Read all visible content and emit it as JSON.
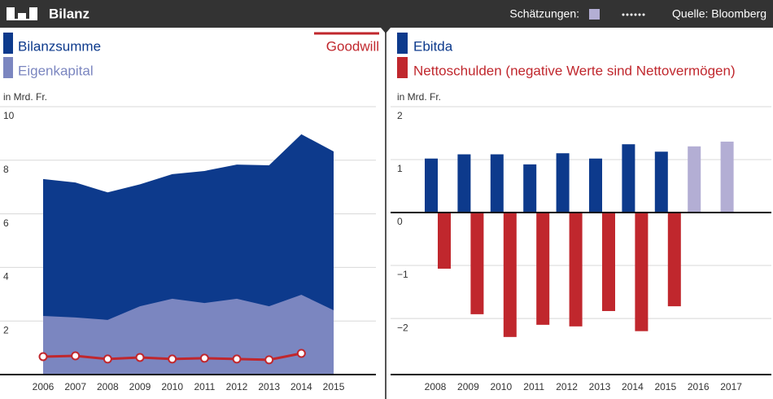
{
  "header": {
    "title": "Bilanz",
    "estimate_label": "Schätzungen:",
    "source": "Quelle: Bloomberg"
  },
  "chart_data": [
    {
      "type": "area",
      "y_label": "in Mrd. Fr.",
      "categories": [
        "2006",
        "2007",
        "2008",
        "2009",
        "2010",
        "2011",
        "2012",
        "2013",
        "2014",
        "2015"
      ],
      "series": [
        {
          "name": "Bilanzsumme",
          "color": "#0d3a8c",
          "values": [
            7.3,
            7.17,
            6.8,
            7.1,
            7.48,
            7.6,
            7.84,
            7.81,
            8.97,
            8.33
          ]
        },
        {
          "name": "Eigenkapital",
          "color": "#7b86c0",
          "values": [
            2.19,
            2.13,
            2.04,
            2.55,
            2.83,
            2.67,
            2.83,
            2.55,
            2.98,
            2.4
          ]
        },
        {
          "name": "Goodwill",
          "color": "#c0272d",
          "type": "line",
          "values": [
            0.67,
            0.7,
            0.58,
            0.64,
            0.58,
            0.61,
            0.58,
            0.55,
            0.79,
            null
          ]
        }
      ],
      "ylim": [
        0,
        10
      ],
      "yticks": [
        2,
        4,
        6,
        8,
        10
      ],
      "grid": true
    },
    {
      "type": "bar",
      "y_label": "in Mrd. Fr.",
      "categories": [
        "2008",
        "2009",
        "2010",
        "2011",
        "2012",
        "2013",
        "2014",
        "2015",
        "2016",
        "2017"
      ],
      "series": [
        {
          "name": "Ebitda",
          "color": "#0d3a8c",
          "colors": [
            "#0d3a8c",
            "#0d3a8c",
            "#0d3a8c",
            "#0d3a8c",
            "#0d3a8c",
            "#0d3a8c",
            "#0d3a8c",
            "#0d3a8c",
            "#b3aed4",
            "#b3aed4"
          ],
          "values": [
            1.02,
            1.1,
            1.1,
            0.91,
            1.12,
            1.02,
            1.29,
            1.15,
            1.25,
            1.34
          ]
        },
        {
          "name": "Nettoschulden (negative Werte sind Nettovermögen)",
          "color": "#c0272d",
          "values": [
            -1.06,
            -1.92,
            -2.35,
            -2.12,
            -2.15,
            -1.86,
            -2.24,
            -1.77,
            null,
            null
          ]
        }
      ],
      "ylim": [
        -3.06,
        2
      ],
      "yticks": [
        {
          "value": -2,
          "label": "−2"
        },
        {
          "value": -1,
          "label": "−1"
        },
        0,
        1,
        2
      ],
      "grid": true
    }
  ]
}
